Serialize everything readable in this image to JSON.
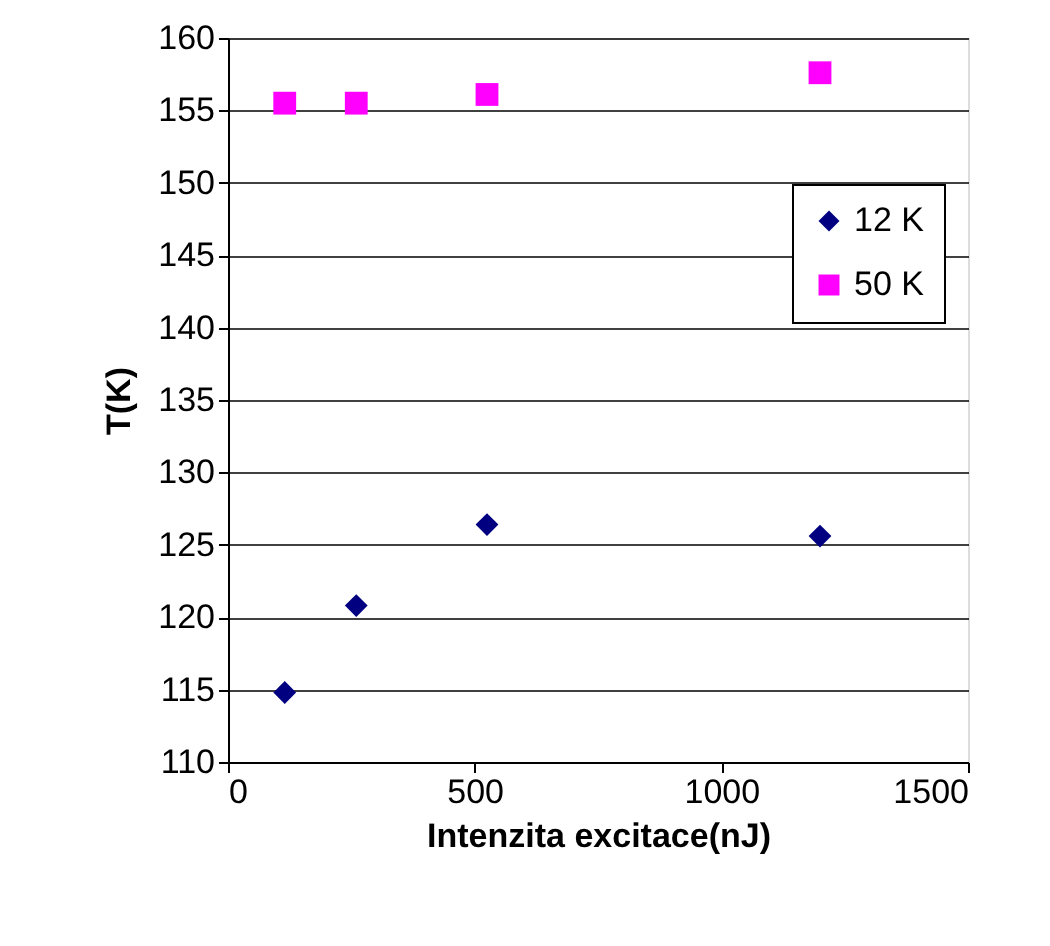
{
  "chart_data": {
    "type": "scatter",
    "xlabel": "Intenzita excitace(nJ)",
    "ylabel": "T(K)",
    "x": [
      115,
      260,
      525,
      1200
    ],
    "series": [
      {
        "name": "12 K",
        "color": "#000080",
        "marker": "diamond",
        "values": [
          114.8,
          120.8,
          126.4,
          125.6
        ]
      },
      {
        "name": "50 K",
        "color": "#ff00ff",
        "marker": "square",
        "values": [
          155.5,
          155.5,
          156.1,
          157.6
        ]
      }
    ],
    "xlim": [
      0,
      1500
    ],
    "xticks": [
      0,
      500,
      1000,
      1500
    ],
    "ylim": [
      110,
      160
    ],
    "yticks": [
      110,
      115,
      120,
      125,
      130,
      135,
      140,
      145,
      150,
      155,
      160
    ],
    "grid": "y",
    "legend": "right"
  }
}
